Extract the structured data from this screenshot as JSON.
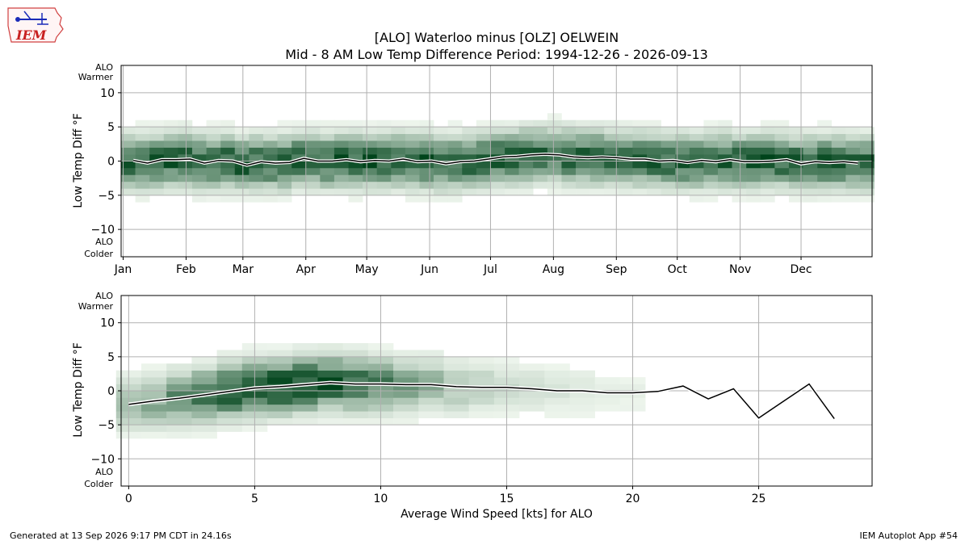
{
  "header": {
    "title_line1": "[ALO] Waterloo minus [OLZ] OELWEIN",
    "title_line2": "Mid - 8 AM Low Temp Difference Period: 1994-12-26 - 2026-09-13",
    "logo_text": "IEM"
  },
  "footer": {
    "generated": "Generated at 13 Sep 2026 9:17 PM CDT in 24.16s",
    "app": "IEM Autoplot App #54"
  },
  "colors": {
    "heat_base": "#00441b",
    "line": "#000000",
    "line_halo": "#ffffff",
    "grid": "#b0b0b0"
  },
  "chart_data": [
    {
      "type": "heatmap",
      "ylabel": "Low Temp Diff °F",
      "y_top_annotation": [
        "ALO",
        "Warmer"
      ],
      "y_bottom_annotation": [
        "ALO",
        "Colder"
      ],
      "x_tick_labels": [
        "Jan",
        "Feb",
        "Mar",
        "Apr",
        "May",
        "Jun",
        "Jul",
        "Aug",
        "Sep",
        "Oct",
        "Nov",
        "Dec"
      ],
      "x_tick_days": [
        1,
        32,
        60,
        91,
        121,
        152,
        182,
        213,
        244,
        274,
        305,
        335
      ],
      "xlim": [
        0,
        370
      ],
      "ylim": [
        -14,
        14
      ],
      "yticks": [
        -10,
        -5,
        0,
        5,
        10
      ],
      "grid": true,
      "mean_line": {
        "x": [
          6,
          13,
          20,
          27,
          34,
          41,
          48,
          55,
          62,
          69,
          76,
          83,
          90,
          97,
          104,
          111,
          118,
          125,
          132,
          139,
          146,
          153,
          160,
          167,
          174,
          181,
          188,
          195,
          202,
          209,
          216,
          223,
          230,
          237,
          244,
          251,
          258,
          265,
          272,
          279,
          286,
          293,
          300,
          307,
          314,
          321,
          328,
          335,
          342,
          349,
          356,
          363
        ],
        "y": [
          0.1,
          -0.3,
          0.2,
          0.2,
          0.3,
          -0.3,
          0.1,
          0.0,
          -0.6,
          -0.1,
          -0.3,
          -0.2,
          0.4,
          0.0,
          0.0,
          0.2,
          -0.1,
          0.1,
          0.0,
          0.3,
          -0.1,
          0.0,
          -0.4,
          -0.1,
          0.0,
          0.3,
          0.6,
          0.7,
          0.9,
          1.0,
          0.9,
          0.6,
          0.5,
          0.6,
          0.5,
          0.3,
          0.3,
          0.0,
          0.1,
          -0.2,
          0.1,
          -0.1,
          0.2,
          -0.1,
          -0.1,
          0.0,
          0.2,
          -0.4,
          -0.1,
          -0.2,
          -0.1,
          -0.3
        ]
      }
    },
    {
      "type": "heatmap",
      "xlabel": "Average Wind Speed [kts] for ALO",
      "ylabel": "Low Temp Diff °F",
      "y_top_annotation": [
        "ALO",
        "Warmer"
      ],
      "y_bottom_annotation": [
        "ALO",
        "Colder"
      ],
      "xticks": [
        0,
        5,
        10,
        15,
        20,
        25
      ],
      "xlim": [
        -0.3,
        29.5
      ],
      "ylim": [
        -14,
        14
      ],
      "yticks": [
        -10,
        -5,
        0,
        5,
        10
      ],
      "grid": true,
      "mean_line": {
        "x": [
          0,
          1,
          2,
          3,
          4,
          5,
          6,
          7,
          8,
          9,
          10,
          11,
          12,
          13,
          14,
          15,
          16,
          17,
          18,
          19,
          20,
          21,
          22,
          23,
          24,
          25,
          26,
          27,
          28
        ],
        "y": [
          -2.0,
          -1.5,
          -1.1,
          -0.6,
          -0.1,
          0.4,
          0.6,
          0.9,
          1.2,
          1.0,
          1.0,
          0.9,
          0.9,
          0.6,
          0.5,
          0.5,
          0.3,
          0.0,
          0.0,
          -0.3,
          -0.3,
          -0.1,
          0.7,
          -1.2,
          0.3,
          -4.0,
          -1.5,
          1.0,
          -4.1
        ]
      }
    }
  ]
}
